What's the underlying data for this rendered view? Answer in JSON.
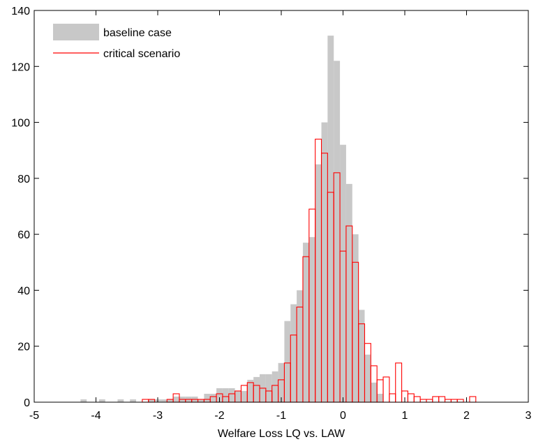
{
  "chart_data": {
    "type": "bar",
    "subtype": "overlaid histogram",
    "xlabel": "Welfare Loss LQ vs. LAW",
    "ylabel": "",
    "xlim": [
      -5,
      3
    ],
    "ylim": [
      0,
      140
    ],
    "xticks": [
      -5,
      -4,
      -3,
      -2,
      -1,
      0,
      1,
      2,
      3
    ],
    "yticks": [
      0,
      20,
      40,
      60,
      80,
      100,
      120,
      140
    ],
    "xtick_labels": [
      "-5",
      "-4",
      "-3",
      "-2",
      "-1",
      "0",
      "1",
      "2",
      "3"
    ],
    "ytick_labels": [
      "0",
      "20",
      "40",
      "60",
      "80",
      "100",
      "120",
      "140"
    ],
    "grid": false,
    "legend_position": "top-left",
    "legend_labels": [
      "baseline case",
      "critical scenario"
    ],
    "series": [
      {
        "name": "baseline case",
        "style": "filled",
        "color": "#c8c8c8",
        "bin_width": 0.1,
        "x": [
          -4.2,
          -3.9,
          -3.6,
          -3.4,
          -3.1,
          -3.0,
          -2.9,
          -2.8,
          -2.7,
          -2.6,
          -2.5,
          -2.4,
          -2.3,
          -2.2,
          -2.1,
          -2.0,
          -1.9,
          -1.8,
          -1.7,
          -1.6,
          -1.5,
          -1.4,
          -1.3,
          -1.2,
          -1.1,
          -1.0,
          -0.9,
          -0.8,
          -0.7,
          -0.6,
          -0.5,
          -0.4,
          -0.3,
          -0.2,
          -0.1,
          0.0,
          0.1,
          0.2,
          0.3,
          0.4,
          0.5,
          0.6
        ],
        "values": [
          1,
          1,
          1,
          1,
          1,
          1,
          1,
          1,
          2,
          2,
          2,
          2,
          1,
          3,
          3,
          5,
          5,
          5,
          4,
          4,
          8,
          9,
          10,
          10,
          11,
          14,
          29,
          35,
          40,
          57,
          59,
          85,
          100,
          131,
          122,
          92,
          78,
          60,
          33,
          17,
          7,
          3
        ]
      },
      {
        "name": "critical scenario",
        "style": "outline",
        "color": "#ff0000",
        "bin_width": 0.1,
        "x": [
          -3.2,
          -3.1,
          -3.0,
          -2.9,
          -2.8,
          -2.7,
          -2.6,
          -2.5,
          -2.4,
          -2.3,
          -2.2,
          -2.1,
          -2.0,
          -1.9,
          -1.8,
          -1.7,
          -1.6,
          -1.5,
          -1.4,
          -1.3,
          -1.2,
          -1.1,
          -1.0,
          -0.9,
          -0.8,
          -0.7,
          -0.6,
          -0.5,
          -0.4,
          -0.3,
          -0.2,
          -0.1,
          0.0,
          0.1,
          0.2,
          0.3,
          0.4,
          0.5,
          0.6,
          0.7,
          0.8,
          0.9,
          1.0,
          1.1,
          1.2,
          1.3,
          1.4,
          1.5,
          1.6,
          1.7,
          1.8,
          1.9,
          2.0,
          2.1
        ],
        "values": [
          1,
          1,
          0,
          0,
          1,
          3,
          1,
          1,
          1,
          1,
          1,
          2,
          3,
          2,
          3,
          4,
          6,
          7,
          6,
          5,
          4,
          6,
          8,
          14,
          24,
          34,
          52,
          69,
          94,
          89,
          75,
          82,
          54,
          63,
          50,
          28,
          21,
          13,
          8,
          9,
          3,
          14,
          4,
          3,
          2,
          1,
          1,
          2,
          2,
          1,
          1,
          1,
          0,
          2
        ]
      }
    ]
  }
}
